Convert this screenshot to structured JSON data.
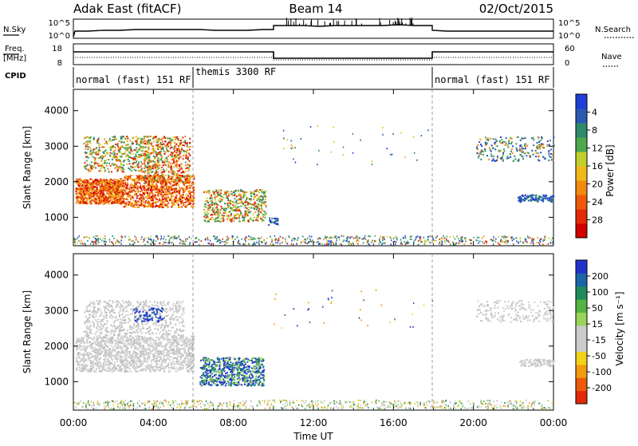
{
  "header": {
    "title": "Adak East (fitACF)",
    "beam": "Beam 14",
    "date": "02/Oct/2015"
  },
  "top_panels": {
    "nsky_label": "N.Sky",
    "nsearch_label": "N.Search",
    "freq_label_1": "Freq.",
    "freq_label_2": "[MHz]",
    "nave_label": "Nave",
    "cpid_label": "CPID",
    "nsky_ticks": [
      "10^5",
      "10^0"
    ],
    "nsearch_ticks": [
      "10^5",
      "10^0"
    ],
    "freq_ticks": [
      "18",
      "8"
    ],
    "nave_ticks": [
      "60",
      "0"
    ],
    "cpid_segments": [
      {
        "label": "normal (fast) 151 RF",
        "start_hour": 0,
        "end_hour": 6
      },
      {
        "label": "themis 3300 RF",
        "start_hour": 6,
        "end_hour": 18
      },
      {
        "label": "normal (fast) 151 RF",
        "start_hour": 18,
        "end_hour": 24
      }
    ]
  },
  "chart_data": [
    {
      "type": "heatmap",
      "name": "power",
      "ylabel": "Slant Range [km]",
      "ylim": [
        200,
        4600
      ],
      "yticks": [
        "1000",
        "2000",
        "3000",
        "4000"
      ],
      "xlim_hours": [
        0,
        24
      ],
      "xticks": [
        "00:00",
        "04:00",
        "08:00",
        "12:00",
        "16:00",
        "20:00",
        "00:00"
      ],
      "colorbar_label": "Power [dB]",
      "colorbar_ticks": [
        "4",
        "8",
        "12",
        "16",
        "20",
        "24",
        "28"
      ],
      "colorbar_colors": [
        "#1f3fd6",
        "#2a5ab0",
        "#2e8a6a",
        "#4ea84e",
        "#c2cf2a",
        "#f2b81a",
        "#f28a10",
        "#ee5a0a",
        "#e02a08",
        "#d00000"
      ]
    },
    {
      "type": "heatmap",
      "name": "velocity",
      "ylabel": "Slant Range [km]",
      "ylim": [
        200,
        4600
      ],
      "yticks": [
        "1000",
        "2000",
        "3000",
        "4000"
      ],
      "xlim_hours": [
        0,
        24
      ],
      "xticks": [
        "00:00",
        "04:00",
        "08:00",
        "12:00",
        "16:00",
        "20:00",
        "00:00"
      ],
      "xlabel": "Time UT",
      "colorbar_label": "Velocity [m s⁻¹]",
      "colorbar_ticks": [
        "200",
        "100",
        "50",
        "15",
        "-15",
        "-50",
        "-100",
        "-200"
      ],
      "colorbar_colors": [
        "#2233cc",
        "#1a66a8",
        "#1f8a5a",
        "#55b340",
        "#9ad35a",
        "#cccccc",
        "#cccccc",
        "#f2d21a",
        "#f29a10",
        "#ee5a0a",
        "#e02a08"
      ]
    }
  ]
}
